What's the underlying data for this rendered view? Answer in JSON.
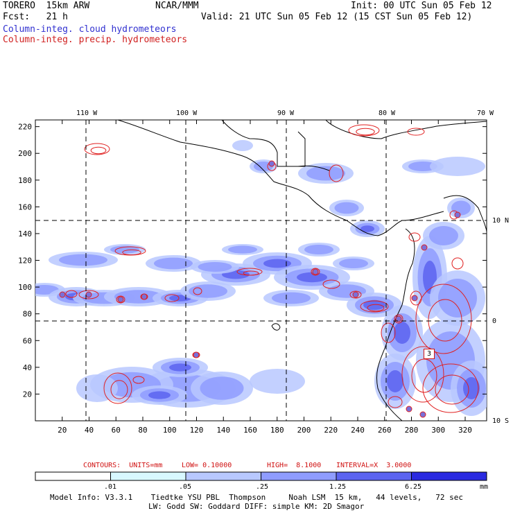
{
  "header": {
    "model": "TORERO  15km ARW",
    "center": "NCAR/MMM",
    "init": "Init: 00 UTC Sun 05 Feb 12",
    "fcst": "Fcst:   21 h",
    "valid": "Valid: 21 UTC Sun 05 Feb 12 (15 CST Sun 05 Feb 12)",
    "field1": "Column-integ. cloud hydrometeors",
    "field2": "Column-integ. precip. hydrometeors"
  },
  "colors": {
    "cloud_blue": "#3030d0",
    "precip_red": "#d02020",
    "fill_levels": [
      "#ffffff",
      "#d8f8ff",
      "#b8c8ff",
      "#8f9cff",
      "#5c64f0",
      "#2a2ae0"
    ]
  },
  "chart_data": {
    "type": "heatmap",
    "title": "",
    "xlabel": "",
    "ylabel": "",
    "x_ticks": [
      "20",
      "40",
      "60",
      "80",
      "100",
      "120",
      "140",
      "160",
      "180",
      "200",
      "220",
      "240",
      "260",
      "280",
      "300",
      "320"
    ],
    "y_ticks": [
      "20",
      "40",
      "60",
      "80",
      "100",
      "120",
      "140",
      "160",
      "180",
      "200",
      "220"
    ],
    "xlim": [
      0,
      336
    ],
    "ylim": [
      0,
      225
    ],
    "lon_labels": [
      "110 W",
      "100 W",
      "90 W",
      "80 W",
      "70 W"
    ],
    "lat_labels": [
      "10 N",
      "0",
      "10 S"
    ],
    "contour_label": "3",
    "contours": {
      "text_units": "CONTOURS:  UNITS=mm",
      "text_low": "LOW= 0.10000",
      "text_high": "HIGH=  8.1000",
      "text_interval": "INTERVAL=X  3.0000"
    },
    "colorbar": {
      "labels": [
        ".01",
        ".05",
        ".25",
        "1.25",
        "6.25"
      ],
      "unit": "mm"
    }
  },
  "footer": {
    "line1": "Model Info: V3.3.1    Tiedtke YSU PBL  Thompson     Noah LSM  15 km,   44 levels,   72 sec",
    "line2": "LW: Godd SW: Goddard DIFF: simple KM: 2D Smagor"
  }
}
